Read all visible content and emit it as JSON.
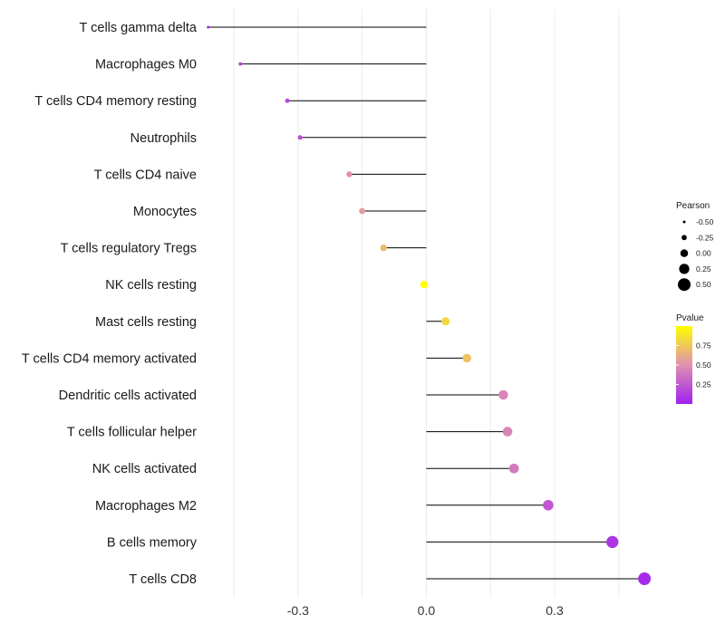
{
  "chart_data": {
    "type": "lollipop",
    "title": "",
    "xlabel": "",
    "ylabel": "",
    "xlim": [
      -0.52,
      0.55
    ],
    "x_ticks": [
      -0.3,
      0.0,
      0.3
    ],
    "x_tick_labels": [
      "-0.3",
      "0.0",
      "0.3"
    ],
    "grid": true,
    "categories": [
      "T cells gamma delta",
      "Macrophages M0",
      "T cells CD4 memory resting",
      "Neutrophils",
      "T cells CD4 naive",
      "Monocytes",
      "T cells regulatory  Tregs ",
      "NK cells resting",
      "Mast cells resting",
      "T cells CD4 memory activated",
      "Dendritic cells activated",
      "T cells follicular helper",
      "NK cells activated",
      "Macrophages M2",
      "B cells memory",
      "T cells CD8"
    ],
    "pearson": [
      -0.51,
      -0.435,
      -0.325,
      -0.295,
      -0.18,
      -0.15,
      -0.1,
      -0.005,
      0.045,
      0.095,
      0.18,
      0.19,
      0.205,
      0.285,
      0.435,
      0.51
    ],
    "pvalue": [
      0.02,
      0.12,
      0.18,
      0.2,
      0.5,
      0.55,
      0.7,
      1.0,
      0.82,
      0.72,
      0.45,
      0.45,
      0.4,
      0.25,
      0.1,
      0.05
    ],
    "legend": {
      "size_title": "Pearson",
      "size_values": [
        -0.5,
        -0.25,
        0.0,
        0.25,
        0.5
      ],
      "size_labels": [
        "-0.50",
        "-0.25",
        "0.00",
        "0.25",
        "0.50"
      ],
      "color_title": "Pvalue",
      "color_ticks": [
        0.25,
        0.5,
        0.75
      ],
      "color_tick_labels": [
        "0.25",
        "0.50",
        "0.75"
      ],
      "color_range": [
        0.0,
        1.0
      ],
      "color_low": "#a020f0",
      "color_mid": "#e090b0",
      "color_high": "#ffff00",
      "placement": "right"
    }
  }
}
